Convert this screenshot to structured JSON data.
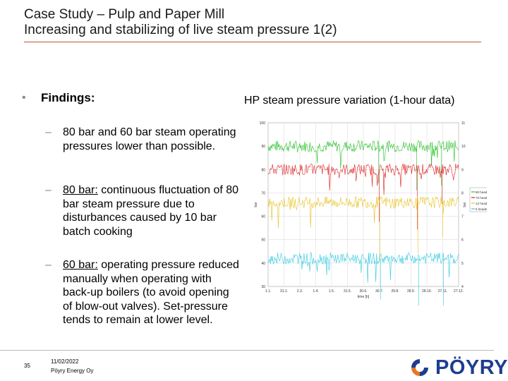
{
  "slide": {
    "title_line1": "Case Study – Pulp and Paper Mill",
    "title_line2": "Increasing and stabilizing of live steam pressure 1(2)"
  },
  "findings": {
    "bullet": "•",
    "heading": "Findings:",
    "items": [
      {
        "dash": "–",
        "lead": "",
        "text": "80 bar and 60 bar steam operating pressures lower than possible."
      },
      {
        "dash": "–",
        "lead": "80 bar:",
        "text": " continuous fluctuation of 80 bar steam pressure due to disturbances caused by 10 bar batch cooking"
      },
      {
        "dash": "–",
        "lead": "60 bar:",
        "text": " operating pressure reduced manually when operating with back-up boilers (to avoid opening of blow-out valves). Set-pressure tends to remain at lower level."
      }
    ]
  },
  "chart_title": "HP steam pressure variation (1-hour data)",
  "chart_data": {
    "type": "line",
    "x": [
      "1.1.",
      "31.1.",
      "2.3.",
      "1.4.",
      "1.5.",
      "31.5.",
      "30.6.",
      "30.7.",
      "29.8.",
      "28.9.",
      "28.10.",
      "27.11.",
      "27.12."
    ],
    "xlabel": "time [h]",
    "ylabel": "bar",
    "y2label": "bar",
    "ylim": [
      30,
      100
    ],
    "yticks": [
      30,
      40,
      50,
      60,
      70,
      80,
      90,
      100
    ],
    "y2lim": [
      4,
      11
    ],
    "y2ticks": [
      4,
      5,
      6,
      7,
      8,
      9,
      10,
      11
    ],
    "legend_position": "right",
    "series": [
      {
        "name": "80 header",
        "color": "#22c022",
        "axis": "left",
        "level": 90
      },
      {
        "name": "70 header",
        "color": "#dd2020",
        "axis": "left",
        "level": 80
      },
      {
        "name": "12 header",
        "color": "#e8c020",
        "axis": "left",
        "level": 66
      },
      {
        "name": "5 header",
        "color": "#30c8e0",
        "axis": "left",
        "level": 42
      }
    ]
  },
  "footer": {
    "page_number": "35",
    "date": "11/02/2022",
    "company": "Pöyry Energy Oy",
    "logo_text": "PÖYRY"
  },
  "colors": {
    "title_rule": "#c8553d",
    "logo_blue": "#1d3e8f",
    "logo_orange": "#e87722"
  }
}
